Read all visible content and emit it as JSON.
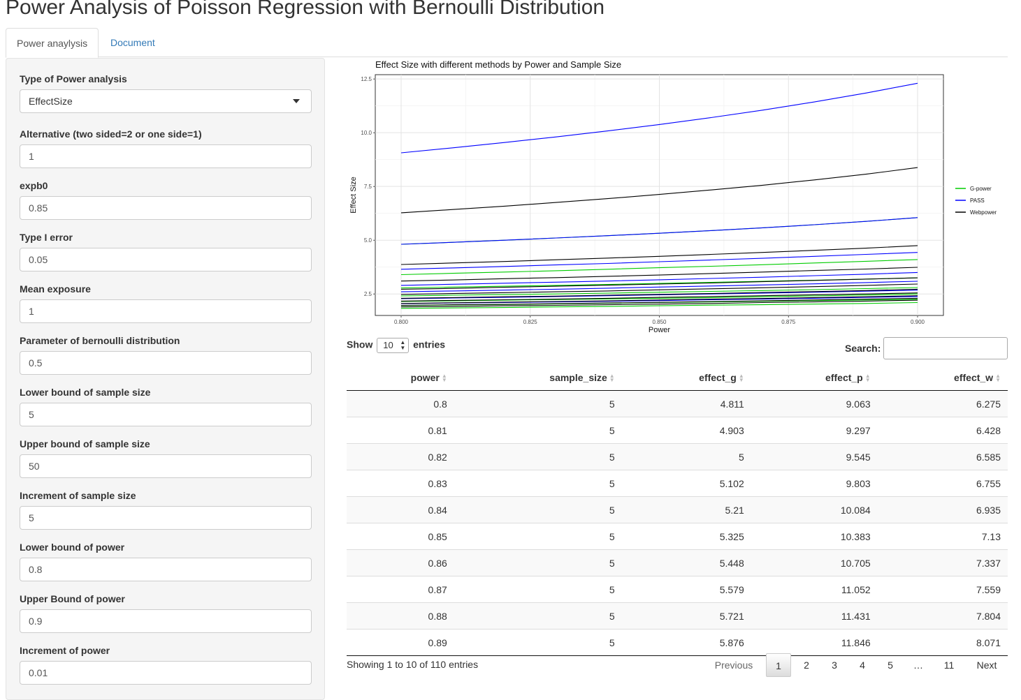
{
  "app": {
    "title": "Power Analysis of Poisson Regression with Bernoulli Distribution"
  },
  "tabs": [
    {
      "label": "Power anaylysis",
      "active": true
    },
    {
      "label": "Document",
      "active": false
    }
  ],
  "sidebar": {
    "type_label": "Type of Power analysis",
    "type_value": "EffectSize",
    "fields": [
      {
        "label": "Alternative (two sided=2 or one side=1)",
        "value": "1"
      },
      {
        "label": "expb0",
        "value": "0.85"
      },
      {
        "label": "Type I error",
        "value": "0.05"
      },
      {
        "label": "Mean exposure",
        "value": "1"
      },
      {
        "label": "Parameter of bernoulli distribution",
        "value": "0.5"
      },
      {
        "label": "Lower bound of sample size",
        "value": "5"
      },
      {
        "label": "Upper bound of sample size",
        "value": "50"
      },
      {
        "label": "Increment of sample size",
        "value": "5"
      },
      {
        "label": "Lower bound of power",
        "value": "0.8"
      },
      {
        "label": "Upper Bound of power",
        "value": "0.9"
      },
      {
        "label": "Increment of power",
        "value": "0.01"
      }
    ]
  },
  "chart_data": {
    "type": "line",
    "title": "Effect Size with different methods by Power and Sample Size",
    "xlabel": "Power",
    "ylabel": "Effect Size",
    "xlim": [
      0.8,
      0.9
    ],
    "ylim": [
      1.5,
      12.7
    ],
    "xticks": [
      "0.800",
      "0.825",
      "0.850",
      "0.875",
      "0.900"
    ],
    "yticks": [
      "2.5",
      "5.0",
      "7.5",
      "10.0",
      "12.5"
    ],
    "grid": true,
    "legend_position": "right",
    "x": [
      0.8,
      0.81,
      0.82,
      0.83,
      0.84,
      0.85,
      0.86,
      0.87,
      0.88,
      0.89,
      0.9
    ],
    "series": [
      {
        "name": "G-power",
        "color": "#00cc00",
        "lines": [
          [
            4.811,
            4.903,
            5.0,
            5.102,
            5.21,
            5.325,
            5.448,
            5.579,
            5.721,
            5.876,
            6.05
          ],
          [
            3.4,
            3.46,
            3.52,
            3.58,
            3.65,
            3.72,
            3.79,
            3.86,
            3.94,
            4.02,
            4.1
          ],
          [
            2.78,
            2.82,
            2.86,
            2.9,
            2.94,
            2.99,
            3.04,
            3.09,
            3.14,
            3.19,
            3.25
          ],
          [
            2.41,
            2.44,
            2.47,
            2.5,
            2.54,
            2.58,
            2.62,
            2.66,
            2.7,
            2.75,
            2.8
          ],
          [
            2.15,
            2.18,
            2.21,
            2.24,
            2.27,
            2.3,
            2.33,
            2.37,
            2.41,
            2.45,
            2.5
          ],
          [
            1.96,
            1.99,
            2.01,
            2.04,
            2.07,
            2.1,
            2.13,
            2.16,
            2.19,
            2.22,
            2.25
          ],
          [
            1.83,
            1.85,
            1.87,
            1.9,
            1.92,
            1.95,
            1.98,
            2.0,
            2.03,
            2.06,
            2.1
          ]
        ]
      },
      {
        "name": "PASS",
        "color": "#0000ff",
        "lines": [
          [
            9.063,
            9.297,
            9.545,
            9.803,
            10.084,
            10.383,
            10.705,
            11.052,
            11.431,
            11.846,
            12.3
          ],
          [
            4.811,
            4.903,
            5.0,
            5.102,
            5.21,
            5.325,
            5.448,
            5.579,
            5.721,
            5.876,
            6.05
          ],
          [
            3.65,
            3.71,
            3.78,
            3.85,
            3.92,
            4.0,
            4.08,
            4.16,
            4.25,
            4.34,
            4.43
          ],
          [
            2.9,
            2.95,
            3.0,
            3.05,
            3.1,
            3.16,
            3.22,
            3.28,
            3.35,
            3.42,
            3.5
          ],
          [
            2.6,
            2.64,
            2.68,
            2.72,
            2.77,
            2.82,
            2.87,
            2.92,
            2.97,
            3.03,
            3.09
          ],
          [
            2.28,
            2.31,
            2.34,
            2.38,
            2.42,
            2.46,
            2.5,
            2.54,
            2.58,
            2.63,
            2.68
          ],
          [
            2.05,
            2.08,
            2.1,
            2.13,
            2.16,
            2.19,
            2.23,
            2.26,
            2.3,
            2.34,
            2.38
          ]
        ]
      },
      {
        "name": "Webpower",
        "color": "#000000",
        "lines": [
          [
            6.275,
            6.428,
            6.585,
            6.755,
            6.935,
            7.13,
            7.337,
            7.559,
            7.804,
            8.071,
            8.38
          ],
          [
            3.87,
            3.94,
            4.01,
            4.09,
            4.17,
            4.25,
            4.34,
            4.43,
            4.53,
            4.63,
            4.75
          ],
          [
            3.1,
            3.15,
            3.21,
            3.26,
            3.32,
            3.38,
            3.45,
            3.52,
            3.59,
            3.66,
            3.74
          ],
          [
            2.72,
            2.76,
            2.81,
            2.86,
            2.91,
            2.96,
            3.01,
            3.07,
            3.13,
            3.19,
            3.25
          ],
          [
            2.48,
            2.52,
            2.56,
            2.6,
            2.64,
            2.69,
            2.74,
            2.79,
            2.84,
            2.9,
            2.96
          ],
          [
            2.3,
            2.33,
            2.37,
            2.4,
            2.44,
            2.48,
            2.52,
            2.57,
            2.61,
            2.66,
            2.72
          ],
          [
            2.17,
            2.2,
            2.23,
            2.26,
            2.3,
            2.34,
            2.38,
            2.42,
            2.46,
            2.5,
            2.55
          ],
          [
            2.06,
            2.09,
            2.12,
            2.15,
            2.18,
            2.22,
            2.26,
            2.29,
            2.33,
            2.37,
            2.42
          ],
          [
            1.97,
            2.0,
            2.02,
            2.05,
            2.08,
            2.11,
            2.15,
            2.18,
            2.22,
            2.26,
            2.3
          ],
          [
            1.9,
            1.92,
            1.95,
            1.97,
            2.0,
            2.03,
            2.06,
            2.1,
            2.13,
            2.17,
            2.21
          ]
        ]
      }
    ]
  },
  "table": {
    "length": {
      "show": "Show",
      "value": "10",
      "entries": "entries"
    },
    "search_label": "Search:",
    "columns": [
      "power",
      "sample_size",
      "effect_g",
      "effect_p",
      "effect_w"
    ],
    "rows": [
      [
        "0.8",
        "5",
        "4.811",
        "9.063",
        "6.275"
      ],
      [
        "0.81",
        "5",
        "4.903",
        "9.297",
        "6.428"
      ],
      [
        "0.82",
        "5",
        "5",
        "9.545",
        "6.585"
      ],
      [
        "0.83",
        "5",
        "5.102",
        "9.803",
        "6.755"
      ],
      [
        "0.84",
        "5",
        "5.21",
        "10.084",
        "6.935"
      ],
      [
        "0.85",
        "5",
        "5.325",
        "10.383",
        "7.13"
      ],
      [
        "0.86",
        "5",
        "5.448",
        "10.705",
        "7.337"
      ],
      [
        "0.87",
        "5",
        "5.579",
        "11.052",
        "7.559"
      ],
      [
        "0.88",
        "5",
        "5.721",
        "11.431",
        "7.804"
      ],
      [
        "0.89",
        "5",
        "5.876",
        "11.846",
        "8.071"
      ]
    ],
    "info": "Showing 1 to 10 of 110 entries",
    "pagination": {
      "previous": "Previous",
      "pages": [
        "1",
        "2",
        "3",
        "4",
        "5",
        "…",
        "11"
      ],
      "next": "Next"
    }
  }
}
